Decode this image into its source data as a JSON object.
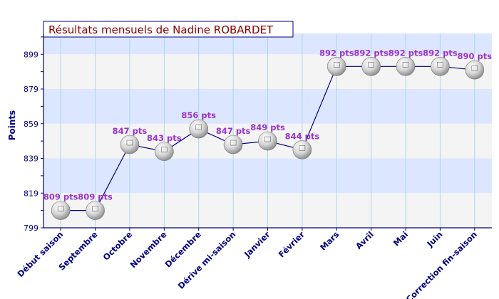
{
  "chart_data": {
    "type": "line",
    "title": "Résultats mensuels de Nadine ROBARDET",
    "ylabel": "Points",
    "xlabel": "",
    "ylim": [
      799,
      911
    ],
    "yticks": [
      799,
      819,
      839,
      859,
      879,
      899
    ],
    "grid": true,
    "categories": [
      "Début saison",
      "Septembre",
      "Octobre",
      "Novembre",
      "Décembre",
      "Dérive mi-saison",
      "Janvier",
      "Février",
      "Mars",
      "Avril",
      "Mai",
      "Juin",
      "Correction fin-saison"
    ],
    "values": [
      809,
      809,
      847,
      843,
      856,
      847,
      849,
      844,
      892,
      892,
      892,
      892,
      890
    ],
    "labels": [
      "809 pts",
      "809 pts",
      "847 pts",
      "843 pts",
      "856 pts",
      "847 pts",
      "849 pts",
      "844 pts",
      "892 pts",
      "892 pts",
      "892 pts",
      "892 pts",
      "890 pts"
    ],
    "colors": {
      "title_text": "#8b0000",
      "axis": "#000080",
      "line": "#000080",
      "data_label": "#9933cc",
      "band_blue": "#dde6ff",
      "band_grey": "#f4f4f4",
      "grid": "#a8d8ea"
    }
  }
}
